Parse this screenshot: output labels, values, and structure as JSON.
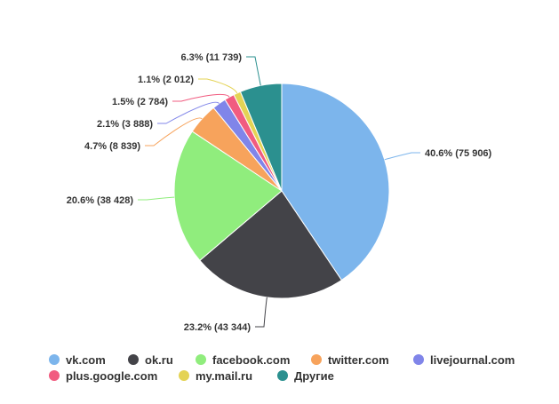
{
  "chart_data": {
    "type": "pie",
    "title": "",
    "legend_position": "bottom",
    "slices": [
      {
        "name": "vk.com",
        "value": 75906,
        "percent": 40.6,
        "label": "40.6% (75 906)",
        "color": "#7cb5ec"
      },
      {
        "name": "ok.ru",
        "value": 43344,
        "percent": 23.2,
        "label": "23.2% (43 344)",
        "color": "#434348"
      },
      {
        "name": "facebook.com",
        "value": 38428,
        "percent": 20.6,
        "label": "20.6% (38 428)",
        "color": "#90ed7d"
      },
      {
        "name": "twitter.com",
        "value": 8839,
        "percent": 4.7,
        "label": "4.7% (8 839)",
        "color": "#f7a35c"
      },
      {
        "name": "livejournal.com",
        "value": 3888,
        "percent": 2.1,
        "label": "2.1% (3 888)",
        "color": "#8085e9"
      },
      {
        "name": "plus.google.com",
        "value": 2784,
        "percent": 1.5,
        "label": "1.5% (2 784)",
        "color": "#f15c80"
      },
      {
        "name": "my.mail.ru",
        "value": 2012,
        "percent": 1.1,
        "label": "1.1% (2 012)",
        "color": "#e4d354"
      },
      {
        "name": "Другие",
        "value": 11739,
        "percent": 6.3,
        "label": "6.3% (11 739)",
        "color": "#2b908f"
      }
    ]
  }
}
